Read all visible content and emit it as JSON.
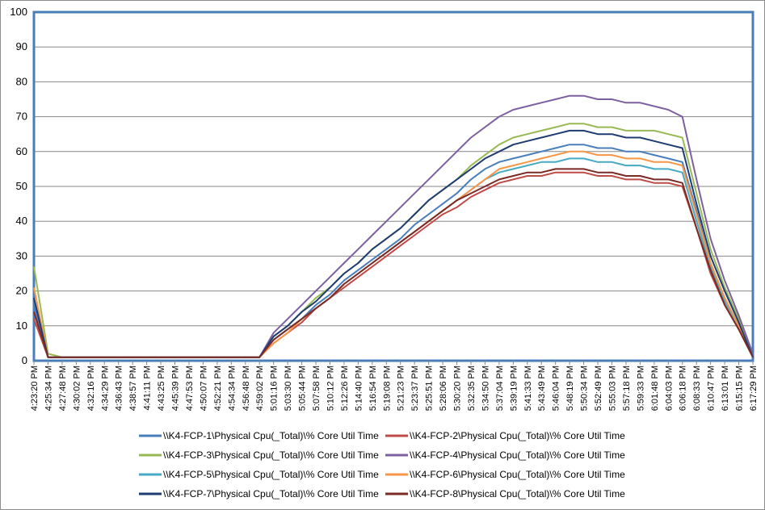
{
  "chart_data": {
    "type": "line",
    "title": "",
    "xlabel": "",
    "ylabel": "",
    "ylim": [
      0,
      100
    ],
    "yticks": [
      0,
      10,
      20,
      30,
      40,
      50,
      60,
      70,
      80,
      90,
      100
    ],
    "grid": "horizontal",
    "legend_position": "bottom",
    "x": [
      "4:23:20 PM",
      "4:25:34 PM",
      "4:27:48 PM",
      "4:30:02 PM",
      "4:32:16 PM",
      "4:34:29 PM",
      "4:36:43 PM",
      "4:38:57 PM",
      "4:41:11 PM",
      "4:43:25 PM",
      "4:45:39 PM",
      "4:47:53 PM",
      "4:50:07 PM",
      "4:52:21 PM",
      "4:54:34 PM",
      "4:56:48 PM",
      "4:59:02 PM",
      "5:01:16 PM",
      "5:03:30 PM",
      "5:05:44 PM",
      "5:07:58 PM",
      "5:10:12 PM",
      "5:12:26 PM",
      "5:14:40 PM",
      "5:16:54 PM",
      "5:19:08 PM",
      "5:21:23 PM",
      "5:23:37 PM",
      "5:25:51 PM",
      "5:28:06 PM",
      "5:30:20 PM",
      "5:32:35 PM",
      "5:34:50 PM",
      "5:37:04 PM",
      "5:39:19 PM",
      "5:41:33 PM",
      "5:43:49 PM",
      "5:46:04 PM",
      "5:48:19 PM",
      "5:50:34 PM",
      "5:52:49 PM",
      "5:55:03 PM",
      "5:57:18 PM",
      "5:59:33 PM",
      "6:01:48 PM",
      "6:04:03 PM",
      "6:06:18 PM",
      "6:08:33 PM",
      "6:10:47 PM",
      "6:13:01 PM",
      "6:15:15 PM",
      "6:17:29 PM"
    ],
    "series": [
      {
        "name": "\\\\K4-FCP-1\\Physical Cpu(_Total)\\% Core Util Time",
        "color": "#4a7ebb",
        "values": [
          16,
          1,
          1,
          1,
          1,
          1,
          1,
          1,
          1,
          1,
          1,
          1,
          1,
          1,
          1,
          1,
          1,
          6,
          9,
          12,
          16,
          19,
          23,
          26,
          29,
          32,
          35,
          39,
          42,
          45,
          48,
          52,
          55,
          57,
          58,
          59,
          60,
          61,
          62,
          62,
          61,
          61,
          60,
          60,
          59,
          58,
          57,
          43,
          28,
          18,
          10,
          1
        ]
      },
      {
        "name": "\\\\K4-FCP-2\\Physical Cpu(_Total)\\% Core Util Time",
        "color": "#be4b48",
        "values": [
          12,
          1,
          1,
          1,
          1,
          1,
          1,
          1,
          1,
          1,
          1,
          1,
          1,
          1,
          1,
          1,
          1,
          5,
          8,
          11,
          15,
          18,
          21,
          24,
          27,
          30,
          33,
          36,
          39,
          42,
          44,
          47,
          49,
          51,
          52,
          53,
          53,
          54,
          54,
          54,
          53,
          53,
          52,
          52,
          51,
          51,
          50,
          38,
          25,
          16,
          9,
          1
        ]
      },
      {
        "name": "\\\\K4-FCP-3\\Physical Cpu(_Total)\\% Core Util Time",
        "color": "#98b954",
        "values": [
          27,
          2,
          1,
          1,
          1,
          1,
          1,
          1,
          1,
          1,
          1,
          1,
          1,
          1,
          1,
          1,
          1,
          7,
          10,
          14,
          18,
          21,
          25,
          28,
          32,
          35,
          38,
          42,
          46,
          49,
          52,
          56,
          59,
          62,
          64,
          65,
          66,
          67,
          68,
          68,
          67,
          67,
          66,
          66,
          66,
          65,
          64,
          48,
          32,
          21,
          12,
          2
        ]
      },
      {
        "name": "\\\\K4-FCP-4\\Physical Cpu(_Total)\\% Core Util Time",
        "color": "#7d60a0",
        "values": [
          18,
          1,
          1,
          1,
          1,
          1,
          1,
          1,
          1,
          1,
          1,
          1,
          1,
          1,
          1,
          1,
          1,
          8,
          12,
          16,
          20,
          24,
          28,
          32,
          36,
          40,
          44,
          48,
          52,
          56,
          60,
          64,
          67,
          70,
          72,
          73,
          74,
          75,
          76,
          76,
          75,
          75,
          74,
          74,
          73,
          72,
          70,
          52,
          35,
          23,
          13,
          2
        ]
      },
      {
        "name": "\\\\K4-FCP-5\\Physical Cpu(_Total)\\% Core Util Time",
        "color": "#46aac5",
        "values": [
          14,
          1,
          1,
          1,
          1,
          1,
          1,
          1,
          1,
          1,
          1,
          1,
          1,
          1,
          1,
          1,
          1,
          6,
          9,
          12,
          15,
          18,
          22,
          25,
          28,
          31,
          34,
          37,
          40,
          43,
          46,
          49,
          52,
          54,
          55,
          56,
          57,
          57,
          58,
          58,
          57,
          57,
          56,
          56,
          55,
          55,
          54,
          40,
          27,
          17,
          10,
          1
        ]
      },
      {
        "name": "\\\\K4-FCP-6\\Physical Cpu(_Total)\\% Core Util Time",
        "color": "#f79646",
        "values": [
          21,
          1,
          1,
          1,
          1,
          1,
          1,
          1,
          1,
          1,
          1,
          1,
          1,
          1,
          1,
          1,
          1,
          5,
          8,
          12,
          15,
          18,
          22,
          25,
          28,
          31,
          34,
          37,
          40,
          43,
          46,
          49,
          52,
          55,
          56,
          57,
          58,
          59,
          60,
          60,
          59,
          59,
          58,
          58,
          57,
          57,
          56,
          42,
          28,
          18,
          10,
          1
        ]
      },
      {
        "name": "\\\\K4-FCP-7\\Physical Cpu(_Total)\\% Core Util Time",
        "color": "#1f3c72",
        "values": [
          18,
          1,
          1,
          1,
          1,
          1,
          1,
          1,
          1,
          1,
          1,
          1,
          1,
          1,
          1,
          1,
          1,
          7,
          10,
          14,
          17,
          21,
          25,
          28,
          32,
          35,
          38,
          42,
          46,
          49,
          52,
          55,
          58,
          60,
          62,
          63,
          64,
          65,
          66,
          66,
          65,
          65,
          64,
          64,
          63,
          62,
          61,
          45,
          30,
          20,
          11,
          1
        ]
      },
      {
        "name": "\\\\K4-FCP-8\\Physical Cpu(_Total)\\% Core Util Time",
        "color": "#7b2a25",
        "values": [
          14,
          1,
          1,
          1,
          1,
          1,
          1,
          1,
          1,
          1,
          1,
          1,
          1,
          1,
          1,
          1,
          1,
          6,
          9,
          12,
          15,
          18,
          22,
          25,
          28,
          31,
          34,
          37,
          40,
          43,
          46,
          48,
          50,
          52,
          53,
          54,
          54,
          55,
          55,
          55,
          54,
          54,
          53,
          53,
          52,
          52,
          51,
          38,
          26,
          16,
          9,
          1
        ]
      }
    ]
  }
}
